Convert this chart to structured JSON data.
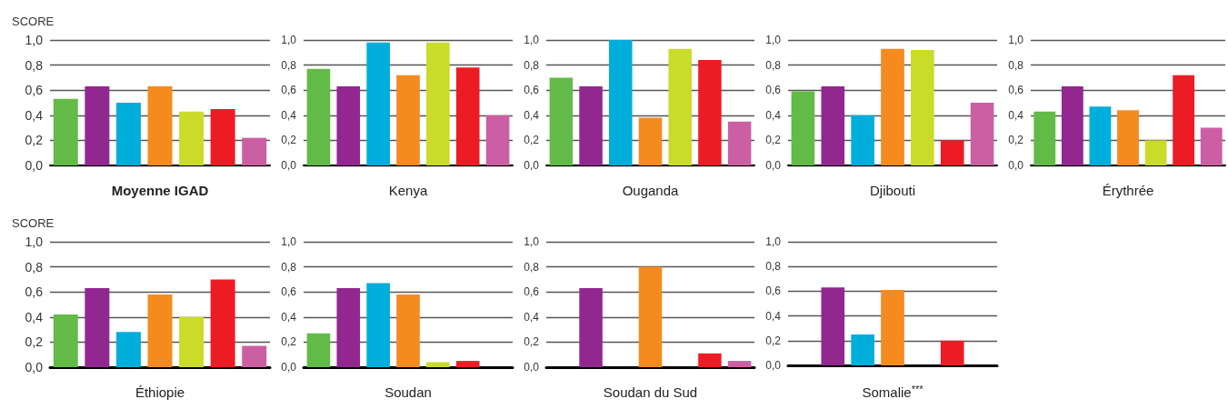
{
  "chart_data": [
    {
      "type": "bar",
      "xlabel": "Moyenne IGAD",
      "ylabel": "SCORE",
      "categories": [
        null,
        null,
        null,
        null,
        null,
        null,
        null
      ],
      "values": [
        0.53,
        0.63,
        0.5,
        0.63,
        0.43,
        0.45,
        0.22
      ],
      "colors": [
        "#62bb46",
        "#92278f",
        "#00aedb",
        "#f58b1f",
        "#cbdb2a",
        "#ed1c24",
        "#cc5fa4"
      ],
      "ylim": [
        0,
        1
      ],
      "yticks": [
        {
          "value": 0,
          "label": "0,0"
        },
        {
          "value": 0.2,
          "label": "0,2"
        },
        {
          "value": 0.4,
          "label": "0,4"
        },
        {
          "value": 0.6,
          "label": "0,6"
        },
        {
          "value": 0.8,
          "label": "0,8"
        },
        {
          "value": 1,
          "label": "1,0"
        }
      ],
      "grid": "y",
      "tick_labels": "y"
    },
    {
      "type": "bar",
      "xlabel": "Kenya",
      "categories": [
        null,
        null,
        null,
        null,
        null,
        null,
        null
      ],
      "values": [
        0.77,
        0.63,
        0.98,
        0.72,
        0.98,
        0.78,
        0.4
      ],
      "colors": [
        "#62bb46",
        "#92278f",
        "#00aedb",
        "#f58b1f",
        "#cbdb2a",
        "#ed1c24",
        "#cc5fa4"
      ],
      "ylim": [
        0,
        1
      ],
      "yticks": [
        {
          "value": 0,
          "label": "0,0"
        },
        {
          "value": 0.2,
          "label": "0,2"
        },
        {
          "value": 0.4,
          "label": "0,4"
        },
        {
          "value": 0.6,
          "label": "0,6"
        },
        {
          "value": 0.8,
          "label": "0,8"
        },
        {
          "value": 1,
          "label": "1,0"
        }
      ],
      "grid": "y",
      "tick_labels": "y"
    },
    {
      "type": "bar",
      "xlabel": "Ouganda",
      "categories": [
        null,
        null,
        null,
        null,
        null,
        null,
        null
      ],
      "values": [
        0.7,
        0.63,
        1.0,
        0.38,
        0.93,
        0.84,
        0.35
      ],
      "colors": [
        "#62bb46",
        "#92278f",
        "#00aedb",
        "#f58b1f",
        "#cbdb2a",
        "#ed1c24",
        "#cc5fa4"
      ],
      "ylim": [
        0,
        1
      ],
      "yticks": [
        {
          "value": 0,
          "label": "0,0"
        },
        {
          "value": 0.2,
          "label": "0,2"
        },
        {
          "value": 0.4,
          "label": "0,4"
        },
        {
          "value": 0.6,
          "label": "0,6"
        },
        {
          "value": 0.8,
          "label": "0,8"
        },
        {
          "value": 1,
          "label": "1,0"
        }
      ],
      "grid": "y",
      "tick_labels": "y"
    },
    {
      "type": "bar",
      "xlabel": "Djibouti",
      "categories": [
        null,
        null,
        null,
        null,
        null,
        null,
        null
      ],
      "values": [
        0.59,
        0.63,
        0.4,
        0.93,
        0.92,
        0.2,
        0.5
      ],
      "colors": [
        "#62bb46",
        "#92278f",
        "#00aedb",
        "#f58b1f",
        "#cbdb2a",
        "#ed1c24",
        "#cc5fa4"
      ],
      "ylim": [
        0,
        1
      ],
      "yticks": [
        {
          "value": 0,
          "label": "0,0"
        },
        {
          "value": 0.2,
          "label": "0,2"
        },
        {
          "value": 0.4,
          "label": "0,4"
        },
        {
          "value": 0.6,
          "label": "0,6"
        },
        {
          "value": 0.8,
          "label": "0,8"
        },
        {
          "value": 1,
          "label": "1,0"
        }
      ],
      "grid": "y",
      "tick_labels": "y"
    },
    {
      "type": "bar",
      "xlabel": "Érythrée",
      "categories": [
        null,
        null,
        null,
        null,
        null,
        null,
        null
      ],
      "values": [
        0.43,
        0.63,
        0.47,
        0.44,
        0.2,
        0.72,
        0.3
      ],
      "colors": [
        "#62bb46",
        "#92278f",
        "#00aedb",
        "#f58b1f",
        "#cbdb2a",
        "#ed1c24",
        "#cc5fa4"
      ],
      "ylim": [
        0,
        1
      ],
      "yticks": [
        {
          "value": 0,
          "label": "0,0"
        },
        {
          "value": 0.2,
          "label": "0,2"
        },
        {
          "value": 0.4,
          "label": "0,4"
        },
        {
          "value": 0.6,
          "label": "0,6"
        },
        {
          "value": 0.8,
          "label": "0,8"
        },
        {
          "value": 1,
          "label": "1,0"
        }
      ],
      "grid": "y",
      "tick_labels": "y"
    },
    {
      "type": "bar",
      "xlabel": "Éthiopie",
      "ylabel": "SCORE",
      "categories": [
        null,
        null,
        null,
        null,
        null,
        null,
        null
      ],
      "values": [
        0.42,
        0.63,
        0.28,
        0.58,
        0.4,
        0.7,
        0.17
      ],
      "colors": [
        "#62bb46",
        "#92278f",
        "#00aedb",
        "#f58b1f",
        "#cbdb2a",
        "#ed1c24",
        "#cc5fa4"
      ],
      "ylim": [
        0,
        1
      ],
      "yticks": [
        {
          "value": 0,
          "label": "0,0"
        },
        {
          "value": 0.2,
          "label": "0,2"
        },
        {
          "value": 0.4,
          "label": "0,4"
        },
        {
          "value": 0.6,
          "label": "0,6"
        },
        {
          "value": 0.8,
          "label": "0,8"
        },
        {
          "value": 1,
          "label": "1,0"
        }
      ],
      "grid": "y",
      "tick_labels": "y"
    },
    {
      "type": "bar",
      "xlabel": "Soudan",
      "categories": [
        null,
        null,
        null,
        null,
        null,
        null,
        null
      ],
      "values": [
        0.27,
        0.63,
        0.67,
        0.58,
        0.04,
        0.05,
        0
      ],
      "colors": [
        "#62bb46",
        "#92278f",
        "#00aedb",
        "#f58b1f",
        "#cbdb2a",
        "#ed1c24",
        "#cc5fa4"
      ],
      "ylim": [
        0,
        1
      ],
      "yticks": [
        {
          "value": 0,
          "label": "0,0"
        },
        {
          "value": 0.2,
          "label": "0,2"
        },
        {
          "value": 0.4,
          "label": "0,4"
        },
        {
          "value": 0.6,
          "label": "0,6"
        },
        {
          "value": 0.8,
          "label": "0,8"
        },
        {
          "value": 1,
          "label": "1,0"
        }
      ],
      "grid": "y",
      "tick_labels": "y"
    },
    {
      "type": "bar",
      "xlabel": "Soudan du Sud",
      "categories": [
        null,
        null,
        null,
        null,
        null,
        null,
        null
      ],
      "values": [
        0,
        0.63,
        0,
        0.8,
        0,
        0.11,
        0.05
      ],
      "colors": [
        "#62bb46",
        "#92278f",
        "#00aedb",
        "#f58b1f",
        "#cbdb2a",
        "#ed1c24",
        "#cc5fa4"
      ],
      "ylim": [
        0,
        1
      ],
      "yticks": [
        {
          "value": 0,
          "label": "0,0"
        },
        {
          "value": 0.2,
          "label": "0,2"
        },
        {
          "value": 0.4,
          "label": "0,4"
        },
        {
          "value": 0.6,
          "label": "0,6"
        },
        {
          "value": 0.8,
          "label": "0,8"
        },
        {
          "value": 1,
          "label": "1,0"
        }
      ],
      "grid": "y",
      "tick_labels": "y"
    },
    {
      "type": "bar",
      "xlabel": "Somalie$^{***}$",
      "categories": [
        null,
        null,
        null,
        null,
        null,
        null,
        null
      ],
      "values": [
        0,
        0.63,
        0.25,
        0.61,
        0,
        0.2,
        0
      ],
      "colors": [
        "#62bb46",
        "#92278f",
        "#00aedb",
        "#f58b1f",
        "#cbdb2a",
        "#ed1c24",
        "#cc5fa4"
      ],
      "ylim": [
        0,
        1
      ],
      "yticks": [
        {
          "value": 0,
          "label": "0,0"
        },
        {
          "value": 0.2,
          "label": "0,2"
        },
        {
          "value": 0.4,
          "label": "0,4"
        },
        {
          "value": 0.6,
          "label": "0,6"
        },
        {
          "value": 0.8,
          "label": "0,8"
        },
        {
          "value": 1,
          "label": "1,0"
        }
      ],
      "grid": "y",
      "tick_labels": "y"
    }
  ]
}
